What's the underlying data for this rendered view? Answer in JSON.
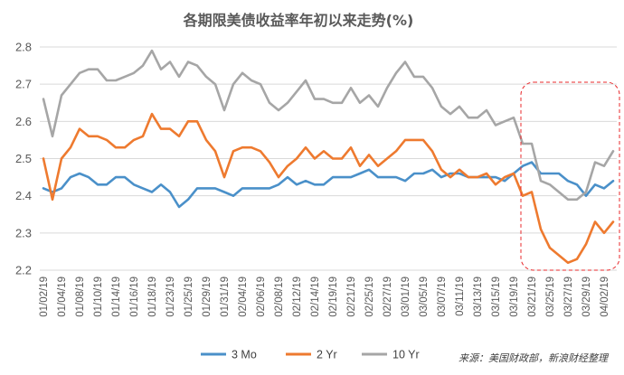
{
  "chart_data": {
    "type": "line",
    "title": "各期限美债收益率年初以来走势(%)",
    "xlabel": "",
    "ylabel": "",
    "ylim": [
      2.2,
      2.8
    ],
    "yticks": [
      "2.2",
      "2.3",
      "2.4",
      "2.5",
      "2.6",
      "2.7",
      "2.8"
    ],
    "grid": "horizontal",
    "legend_position": "bottom",
    "x": [
      "01/02/19",
      "01/03/19",
      "01/04/19",
      "01/07/19",
      "01/08/19",
      "01/09/19",
      "01/10/19",
      "01/11/19",
      "01/14/19",
      "01/15/19",
      "01/16/19",
      "01/17/19",
      "01/18/19",
      "01/22/19",
      "01/23/19",
      "01/24/19",
      "01/25/19",
      "01/28/19",
      "01/29/19",
      "01/30/19",
      "01/31/19",
      "02/01/19",
      "02/04/19",
      "02/05/19",
      "02/06/19",
      "02/07/19",
      "02/08/19",
      "02/11/19",
      "02/12/19",
      "02/13/19",
      "02/14/19",
      "02/15/19",
      "02/19/19",
      "02/20/19",
      "02/21/19",
      "02/22/19",
      "02/25/19",
      "02/26/19",
      "02/27/19",
      "02/28/19",
      "03/01/19",
      "03/04/19",
      "03/05/19",
      "03/06/19",
      "03/07/19",
      "03/08/19",
      "03/11/19",
      "03/12/19",
      "03/13/19",
      "03/14/19",
      "03/15/19",
      "03/18/19",
      "03/19/19",
      "03/20/19",
      "03/21/19",
      "03/22/19",
      "03/25/19",
      "03/26/19",
      "03/27/19",
      "03/28/19",
      "03/29/19",
      "04/01/19",
      "04/02/19",
      "04/03/19"
    ],
    "x_tick_labels": [
      "01/02/19",
      "01/04/19",
      "01/08/19",
      "01/10/19",
      "01/14/19",
      "01/16/19",
      "01/18/19",
      "01/23/19",
      "01/25/19",
      "01/29/19",
      "01/31/19",
      "02/04/19",
      "02/06/19",
      "02/08/19",
      "02/12/19",
      "02/14/19",
      "02/19/19",
      "02/21/19",
      "02/25/19",
      "02/27/19",
      "03/01/19",
      "03/05/19",
      "03/07/19",
      "03/11/19",
      "03/13/19",
      "03/15/19",
      "03/19/19",
      "03/21/19",
      "03/25/19",
      "03/27/19",
      "03/29/19",
      "04/02/19"
    ],
    "series": [
      {
        "name": "3 Mo",
        "color": "#4A90C9",
        "values": [
          2.42,
          2.41,
          2.42,
          2.45,
          2.46,
          2.45,
          2.43,
          2.43,
          2.45,
          2.45,
          2.43,
          2.42,
          2.41,
          2.43,
          2.41,
          2.37,
          2.39,
          2.42,
          2.42,
          2.42,
          2.41,
          2.4,
          2.42,
          2.42,
          2.42,
          2.42,
          2.43,
          2.45,
          2.43,
          2.44,
          2.43,
          2.43,
          2.45,
          2.45,
          2.45,
          2.46,
          2.47,
          2.45,
          2.45,
          2.45,
          2.44,
          2.46,
          2.46,
          2.47,
          2.45,
          2.46,
          2.46,
          2.45,
          2.45,
          2.45,
          2.45,
          2.44,
          2.46,
          2.48,
          2.49,
          2.46,
          2.46,
          2.46,
          2.44,
          2.43,
          2.4,
          2.43,
          2.42,
          2.44
        ]
      },
      {
        "name": "2 Yr",
        "color": "#EE7A2F",
        "values": [
          2.5,
          2.39,
          2.5,
          2.53,
          2.58,
          2.56,
          2.56,
          2.55,
          2.53,
          2.53,
          2.55,
          2.56,
          2.62,
          2.58,
          2.58,
          2.56,
          2.6,
          2.6,
          2.55,
          2.52,
          2.45,
          2.52,
          2.53,
          2.53,
          2.52,
          2.49,
          2.45,
          2.48,
          2.5,
          2.53,
          2.5,
          2.52,
          2.5,
          2.5,
          2.53,
          2.48,
          2.51,
          2.48,
          2.5,
          2.52,
          2.55,
          2.55,
          2.55,
          2.52,
          2.47,
          2.45,
          2.47,
          2.45,
          2.45,
          2.46,
          2.43,
          2.45,
          2.46,
          2.4,
          2.41,
          2.31,
          2.26,
          2.24,
          2.22,
          2.23,
          2.27,
          2.33,
          2.3,
          2.33
        ]
      },
      {
        "name": "10 Yr",
        "color": "#A6A6A6",
        "values": [
          2.66,
          2.56,
          2.67,
          2.7,
          2.73,
          2.74,
          2.74,
          2.71,
          2.71,
          2.72,
          2.73,
          2.75,
          2.79,
          2.74,
          2.76,
          2.72,
          2.76,
          2.75,
          2.72,
          2.7,
          2.63,
          2.7,
          2.73,
          2.71,
          2.7,
          2.65,
          2.63,
          2.65,
          2.68,
          2.71,
          2.66,
          2.66,
          2.65,
          2.65,
          2.69,
          2.65,
          2.67,
          2.64,
          2.69,
          2.73,
          2.76,
          2.72,
          2.72,
          2.69,
          2.64,
          2.62,
          2.64,
          2.61,
          2.61,
          2.63,
          2.59,
          2.6,
          2.61,
          2.54,
          2.54,
          2.44,
          2.43,
          2.41,
          2.39,
          2.39,
          2.41,
          2.49,
          2.48,
          2.52
        ]
      }
    ]
  },
  "source_text": "来源：美国财政部，新浪财经整理",
  "highlight_color": "#E8282B"
}
